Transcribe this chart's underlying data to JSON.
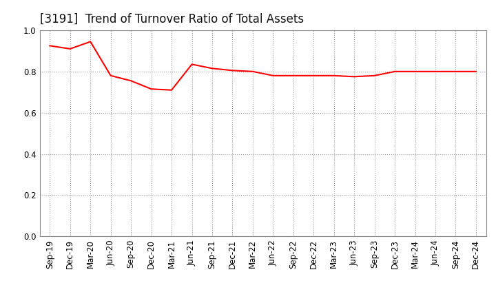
{
  "title": "[3191]  Trend of Turnover Ratio of Total Assets",
  "x_labels": [
    "Sep-19",
    "Dec-19",
    "Mar-20",
    "Jun-20",
    "Sep-20",
    "Dec-20",
    "Mar-21",
    "Jun-21",
    "Sep-21",
    "Dec-21",
    "Mar-22",
    "Jun-22",
    "Sep-22",
    "Dec-22",
    "Mar-23",
    "Jun-23",
    "Sep-23",
    "Dec-23",
    "Mar-24",
    "Jun-24",
    "Sep-24",
    "Dec-24"
  ],
  "y_values": [
    0.925,
    0.91,
    0.945,
    0.78,
    0.755,
    0.715,
    0.71,
    0.835,
    0.815,
    0.805,
    0.8,
    0.78,
    0.78,
    0.78,
    0.78,
    0.775,
    0.78,
    0.8,
    0.8,
    0.8,
    0.8,
    0.8
  ],
  "line_color": "#FF0000",
  "line_width": 1.5,
  "ylim": [
    0.0,
    1.0
  ],
  "yticks": [
    0.0,
    0.2,
    0.4,
    0.6,
    0.8,
    1.0
  ],
  "grid_color": "#999999",
  "grid_style": "dotted",
  "background_color": "#ffffff",
  "title_fontsize": 12,
  "tick_fontsize": 8.5
}
